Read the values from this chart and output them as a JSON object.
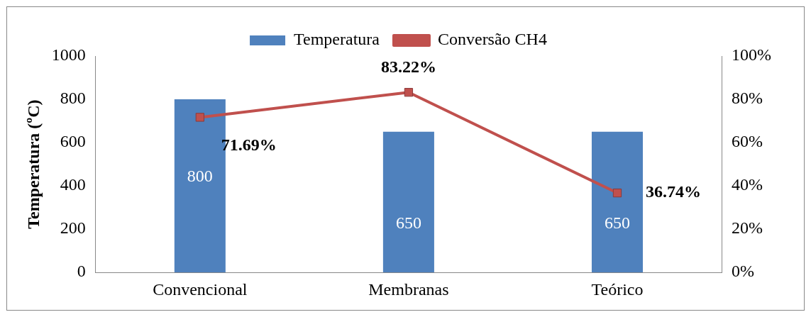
{
  "chart_data": {
    "type": "bar",
    "ylabel": "Temperatura (ºC)",
    "categories": [
      "Convencional",
      "Membranas",
      "Teórico"
    ],
    "series": [
      {
        "name": "Temperatura",
        "color": "#4f81bd",
        "values": [
          800,
          650,
          650
        ],
        "value_labels": [
          "800",
          "650",
          "650"
        ]
      },
      {
        "name": "Conversão CH4",
        "type": "line",
        "axis": "y2",
        "color": "#c0504d",
        "values": [
          71.69,
          83.22,
          36.74
        ],
        "value_labels": [
          "71.69%",
          "83.22%",
          "36.74%"
        ]
      }
    ],
    "ylim": [
      0,
      1000
    ],
    "yticks": [
      0,
      200,
      400,
      600,
      800,
      1000
    ],
    "y2lim": [
      0,
      100
    ],
    "y2ticks": [
      {
        "value": 0,
        "label": "0%"
      },
      {
        "value": 20,
        "label": "20%"
      },
      {
        "value": 40,
        "label": "40%"
      },
      {
        "value": 60,
        "label": "60%"
      },
      {
        "value": 80,
        "label": "80%"
      },
      {
        "value": 100,
        "label": "100%"
      }
    ],
    "grid": false,
    "legend": "top",
    "marker": "square",
    "line_style": "solid"
  }
}
